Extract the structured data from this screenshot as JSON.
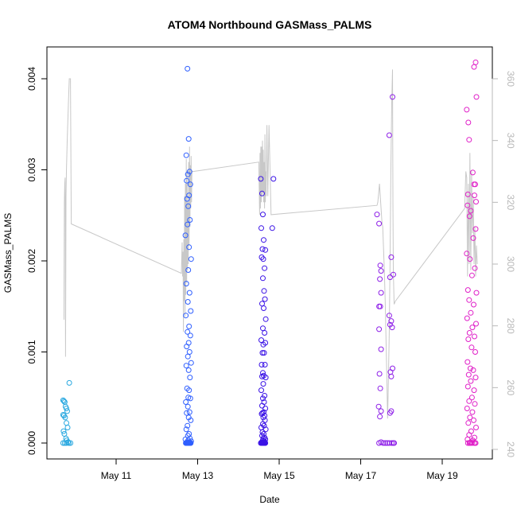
{
  "chart_data": {
    "type": "scatter",
    "title": "ATOM4 Northbound GASMass_PALMS",
    "xlabel": "Date",
    "ylabel": "GASMass_PALMS",
    "x_ticks": [
      "May 11",
      "May 13",
      "May 15",
      "May 17",
      "May 19"
    ],
    "y_ticks": [
      "0.000",
      "0.001",
      "0.002",
      "0.003",
      "0.004"
    ],
    "y2_ticks": [
      "240",
      "260",
      "280",
      "300",
      "320",
      "340",
      "360"
    ],
    "ylim": [
      0,
      0.004
    ],
    "y2lim": [
      240,
      360
    ],
    "x_start": "2018-05-09",
    "colors": {
      "flight1": "#29a8e0",
      "flight2": "#2f5fff",
      "flight3": "#3a12e6",
      "flight4": "#8e1fe8",
      "flight5": "#e020c8",
      "secondary_line": "#c8c8c8",
      "axis": "#000000",
      "right_axis": "#b8b8b8"
    },
    "series": [
      {
        "color_key": "flight1",
        "x": [
          9.7,
          9.72,
          9.74,
          9.76,
          9.78,
          9.8,
          9.7,
          9.72,
          9.75,
          9.78,
          9.81,
          9.85,
          9.71,
          9.73,
          9.77,
          9.79,
          9.82,
          9.88,
          9.7,
          9.74,
          9.78,
          9.84
        ],
        "y": [
          0.00047,
          0.00046,
          0.00045,
          0.0004,
          0.00038,
          0.00035,
          0.00031,
          0.0003,
          0.00028,
          0.00022,
          0.00017,
          0.00066,
          0.00013,
          0.0001,
          5e-05,
          3e-05,
          1e-05,
          0.0,
          0.0,
          0.0,
          0.0,
          0.0
        ]
      },
      {
        "color_key": "flight2",
        "x": [
          12.75,
          12.78,
          12.72,
          12.8,
          12.76,
          12.73,
          12.82,
          12.79,
          12.74,
          12.77,
          12.81,
          12.75,
          12.7,
          12.79,
          12.84,
          12.77,
          12.72,
          12.8,
          12.76,
          12.83,
          12.71,
          12.79,
          12.75,
          12.82,
          12.78,
          12.73,
          12.8,
          12.76,
          12.84,
          12.72,
          12.78,
          12.81,
          12.74,
          12.79,
          12.77,
          12.82,
          12.71,
          12.76,
          12.8,
          12.73,
          12.78,
          12.83,
          12.75,
          12.72,
          12.79,
          12.76,
          12.81,
          12.7,
          12.77,
          12.84,
          12.74,
          12.79,
          12.8,
          12.72,
          12.76,
          12.78,
          12.73,
          12.82,
          12.75,
          12.71,
          12.77,
          12.8,
          12.74,
          12.78,
          12.81,
          12.72,
          12.76,
          12.79,
          12.73,
          12.83,
          12.75,
          12.8
        ],
        "y": [
          0.00411,
          0.00334,
          0.00316,
          0.00298,
          0.00295,
          0.00288,
          0.00284,
          0.00272,
          0.00268,
          0.0026,
          0.00245,
          0.0024,
          0.00228,
          0.00215,
          0.00202,
          0.0019,
          0.00175,
          0.00165,
          0.00155,
          0.00145,
          0.0014,
          0.00128,
          0.00122,
          0.00118,
          0.0011,
          0.00106,
          0.001,
          0.00095,
          0.00088,
          0.00085,
          0.0008,
          0.00072,
          0.0006,
          0.00058,
          0.0005,
          0.00049,
          0.00045,
          0.0004,
          0.00034,
          0.00033,
          0.00028,
          0.00025,
          0.00019,
          0.00015,
          0.0001,
          8e-05,
          5e-05,
          4e-05,
          3e-05,
          2e-05,
          1e-05,
          1e-05,
          0.0,
          0.0,
          0.0,
          0.0,
          0.0,
          0.0,
          0.0,
          0.0,
          0.0,
          0.0,
          0.0,
          0.0,
          0.0,
          0.0,
          0.0,
          0.0,
          0.0,
          0.0,
          0.0,
          0.0
        ]
      },
      {
        "color_key": "flight3",
        "x": [
          14.55,
          14.58,
          14.86,
          14.6,
          14.56,
          14.83,
          14.62,
          14.59,
          14.57,
          14.61,
          14.66,
          14.64,
          14.6,
          14.63,
          14.65,
          14.58,
          14.62,
          14.67,
          14.6,
          14.64,
          14.56,
          14.61,
          14.66,
          14.59,
          14.63,
          14.57,
          14.65,
          14.6,
          14.62,
          14.58,
          14.67,
          14.61,
          14.56,
          14.64,
          14.6,
          14.63,
          14.58,
          14.66,
          14.62,
          14.59,
          14.57,
          14.64,
          14.61,
          14.65,
          14.6,
          14.63,
          14.56,
          14.67,
          14.59,
          14.62,
          14.58,
          14.64,
          14.61,
          14.66,
          14.6,
          14.63,
          14.57,
          14.65,
          14.59,
          14.62,
          14.55,
          14.6,
          14.64,
          14.58,
          14.62,
          14.66,
          14.6,
          14.63,
          14.57,
          14.61,
          14.65,
          14.59,
          14.62
        ],
        "y": [
          0.0029,
          0.00274,
          0.0029,
          0.00251,
          0.00236,
          0.00236,
          0.00223,
          0.00213,
          0.00204,
          0.00202,
          0.00212,
          0.00192,
          0.00181,
          0.00167,
          0.00158,
          0.00153,
          0.00148,
          0.00136,
          0.00126,
          0.00121,
          0.00113,
          0.00108,
          0.0011,
          0.00099,
          0.00099,
          0.00086,
          0.00086,
          0.00077,
          0.00074,
          0.00073,
          0.00072,
          0.00065,
          0.00058,
          0.00052,
          0.00049,
          0.00045,
          0.00041,
          0.00038,
          0.00034,
          0.00033,
          0.00032,
          0.0003,
          0.00028,
          0.00025,
          0.00021,
          0.00019,
          0.00017,
          0.00015,
          0.00012,
          0.0001,
          8e-05,
          6e-05,
          5e-05,
          4e-05,
          3e-05,
          2e-05,
          1e-05,
          1e-05,
          0.0,
          0.0,
          0.0,
          0.0,
          0.0,
          0.0,
          0.0,
          0.0,
          0.0,
          0.0,
          0.0,
          0.0,
          0.0,
          0.0,
          0.0
        ]
      },
      {
        "color_key": "flight4",
        "x": [
          17.78,
          17.7,
          17.4,
          17.45,
          17.75,
          17.48,
          17.5,
          17.47,
          17.72,
          17.5,
          17.8,
          17.45,
          17.48,
          17.7,
          17.72,
          17.75,
          17.77,
          17.45,
          17.5,
          17.46,
          17.78,
          17.73,
          17.75,
          17.48,
          17.44,
          17.75,
          17.72,
          17.5,
          17.47,
          17.5,
          17.55,
          17.6,
          17.65,
          17.7,
          17.76,
          17.8,
          17.82,
          17.45
        ],
        "y": [
          0.0038,
          0.00338,
          0.00251,
          0.00241,
          0.00204,
          0.00195,
          0.00189,
          0.0018,
          0.00182,
          0.00165,
          0.00185,
          0.0015,
          0.0015,
          0.0014,
          0.0013,
          0.00134,
          0.00127,
          0.00125,
          0.00103,
          0.00076,
          0.00082,
          0.00078,
          0.00073,
          0.0006,
          0.0004,
          0.00035,
          0.00033,
          0.00035,
          0.00029,
          1e-05,
          0.0,
          0.0,
          0.0,
          0.0,
          0.0,
          0.0,
          0.0,
          0.0
        ]
      },
      {
        "color_key": "flight5",
        "x": [
          19.82,
          19.78,
          19.84,
          19.6,
          19.64,
          19.66,
          19.75,
          19.78,
          19.81,
          19.63,
          19.79,
          19.83,
          19.62,
          19.7,
          19.67,
          19.82,
          19.76,
          19.6,
          19.68,
          19.8,
          19.73,
          19.63,
          19.84,
          19.66,
          19.77,
          19.7,
          19.61,
          19.83,
          19.74,
          19.67,
          19.79,
          19.64,
          19.72,
          19.81,
          19.62,
          19.69,
          19.76,
          19.65,
          19.82,
          19.7,
          19.63,
          19.78,
          19.73,
          19.66,
          19.8,
          19.61,
          19.74,
          19.68,
          19.77,
          19.64,
          19.83,
          19.71,
          19.66,
          19.79,
          19.62,
          19.75,
          19.7,
          19.81,
          19.67,
          19.73,
          19.63,
          19.78,
          19.69,
          19.82
        ],
        "y": [
          0.00418,
          0.00413,
          0.0038,
          0.00366,
          0.00352,
          0.00333,
          0.00297,
          0.00284,
          0.00284,
          0.00273,
          0.00272,
          0.00265,
          0.00261,
          0.00255,
          0.00249,
          0.00235,
          0.00225,
          0.00208,
          0.00202,
          0.00192,
          0.00184,
          0.00168,
          0.00165,
          0.00157,
          0.00152,
          0.00143,
          0.00137,
          0.00131,
          0.00127,
          0.00121,
          0.00117,
          0.00114,
          0.00105,
          0.001,
          0.00089,
          0.00082,
          0.0008,
          0.00075,
          0.00072,
          0.00068,
          0.00062,
          0.00058,
          0.0005,
          0.00046,
          0.00043,
          0.00038,
          0.00034,
          0.00028,
          0.00025,
          0.00022,
          0.00017,
          0.00013,
          9e-05,
          6e-05,
          4e-05,
          3e-05,
          1e-05,
          0.0,
          0.0,
          0.0,
          0.0,
          0.0,
          0.0,
          0.0
        ]
      }
    ],
    "secondary_line": {
      "axis": "right",
      "points": [
        [
          9.72,
          282
        ],
        [
          9.73,
          320
        ],
        [
          9.74,
          326
        ],
        [
          9.75,
          328
        ],
        [
          9.76,
          270
        ],
        [
          9.77,
          322
        ],
        [
          9.78,
          330
        ],
        [
          9.8,
          340
        ],
        [
          9.83,
          352
        ],
        [
          9.85,
          360
        ],
        [
          9.88,
          360
        ],
        [
          9.9,
          313
        ],
        [
          12.6,
          297
        ],
        [
          12.62,
          307
        ],
        [
          12.63,
          296
        ],
        [
          12.64,
          304
        ],
        [
          12.65,
          278
        ],
        [
          12.66,
          308
        ],
        [
          12.67,
          288
        ],
        [
          12.68,
          322
        ],
        [
          12.69,
          283
        ],
        [
          12.7,
          326
        ],
        [
          12.71,
          290
        ],
        [
          12.72,
          334
        ],
        [
          12.73,
          294
        ],
        [
          12.74,
          330
        ],
        [
          12.75,
          298
        ],
        [
          12.76,
          320
        ],
        [
          12.77,
          300
        ],
        [
          12.78,
          333
        ],
        [
          12.79,
          306
        ],
        [
          12.8,
          338
        ],
        [
          12.81,
          312
        ],
        [
          12.82,
          332
        ],
        [
          12.83,
          318
        ],
        [
          12.84,
          335
        ],
        [
          12.85,
          320
        ],
        [
          12.86,
          330
        ],
        [
          12.9,
          330
        ],
        [
          14.5,
          333
        ],
        [
          14.52,
          316
        ],
        [
          14.53,
          336
        ],
        [
          14.54,
          318
        ],
        [
          14.55,
          338
        ],
        [
          14.56,
          320
        ],
        [
          14.57,
          338
        ],
        [
          14.58,
          322
        ],
        [
          14.59,
          340
        ],
        [
          14.6,
          323
        ],
        [
          14.61,
          337
        ],
        [
          14.62,
          320
        ],
        [
          14.63,
          333
        ],
        [
          14.64,
          318
        ],
        [
          14.65,
          342
        ],
        [
          14.66,
          320
        ],
        [
          14.67,
          330
        ],
        [
          14.68,
          322
        ],
        [
          14.7,
          345
        ],
        [
          14.72,
          322
        ],
        [
          14.75,
          345
        ],
        [
          14.8,
          316
        ],
        [
          17.4,
          319
        ],
        [
          17.42,
          320
        ],
        [
          17.44,
          323
        ],
        [
          17.46,
          326
        ],
        [
          17.48,
          322
        ],
        [
          17.5,
          318
        ],
        [
          17.52,
          314
        ],
        [
          17.54,
          312
        ],
        [
          17.56,
          305
        ],
        [
          17.58,
          298
        ],
        [
          17.6,
          288
        ],
        [
          17.62,
          276
        ],
        [
          17.64,
          264
        ],
        [
          17.66,
          250
        ],
        [
          17.68,
          262
        ],
        [
          17.7,
          278
        ],
        [
          17.72,
          300
        ],
        [
          17.74,
          330
        ],
        [
          17.76,
          352
        ],
        [
          17.78,
          363
        ],
        [
          17.79,
          320
        ],
        [
          17.8,
          298
        ],
        [
          17.82,
          287
        ],
        [
          17.85,
          288
        ],
        [
          19.55,
          318
        ],
        [
          19.58,
          330
        ],
        [
          19.6,
          328
        ],
        [
          19.62,
          296
        ],
        [
          19.64,
          326
        ],
        [
          19.66,
          300
        ],
        [
          19.68,
          336
        ],
        [
          19.7,
          298
        ],
        [
          19.72,
          330
        ],
        [
          19.74,
          310
        ],
        [
          19.76,
          322
        ],
        [
          19.78,
          300
        ],
        [
          19.8,
          312
        ],
        [
          19.82,
          296
        ],
        [
          19.84,
          306
        ],
        [
          19.86,
          300
        ]
      ]
    }
  }
}
